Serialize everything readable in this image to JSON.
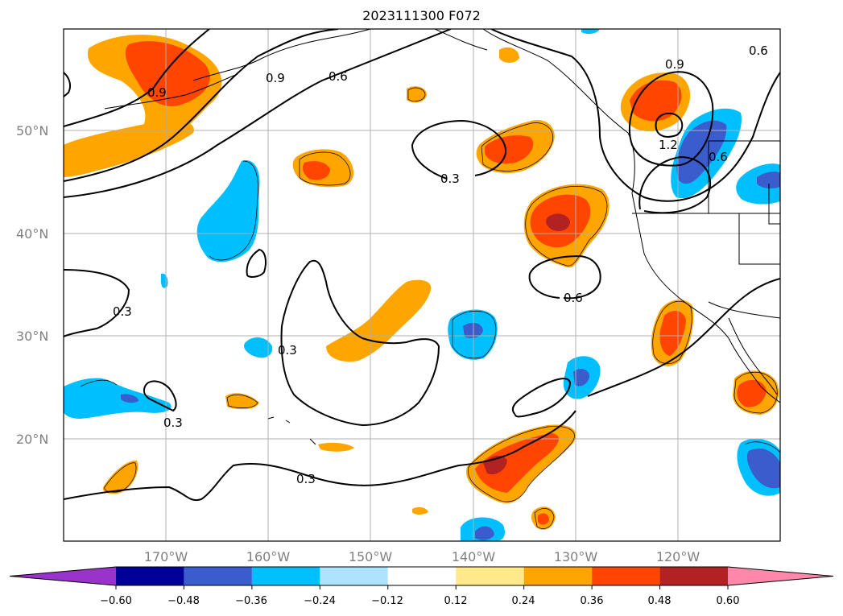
{
  "title": "2023111300 F072",
  "map": {
    "lat_labels": [
      "50°N",
      "40°N",
      "30°N",
      "20°N"
    ],
    "lon_labels": [
      "170°W",
      "160°W",
      "150°W",
      "140°W",
      "130°W",
      "120°W"
    ],
    "contour_labels": [
      "0.9",
      "0.9",
      "0.6",
      "0.9",
      "1.2",
      "0.6",
      "0.6",
      "0.3",
      "0.6",
      "0.3",
      "0.3",
      "0.3",
      "0.3"
    ]
  },
  "colorbar": {
    "ticks": [
      "−0.60",
      "−0.48",
      "−0.36",
      "−0.24",
      "−0.12",
      "0.12",
      "0.24",
      "0.36",
      "0.48",
      "0.60"
    ],
    "colors": [
      "#9933cc",
      "#000099",
      "#3a5ccc",
      "#00bfff",
      "#aee4fb",
      "#ffffff",
      "#ffe98a",
      "#ffa500",
      "#ff4500",
      "#b22222",
      "#ff88aa"
    ]
  }
}
